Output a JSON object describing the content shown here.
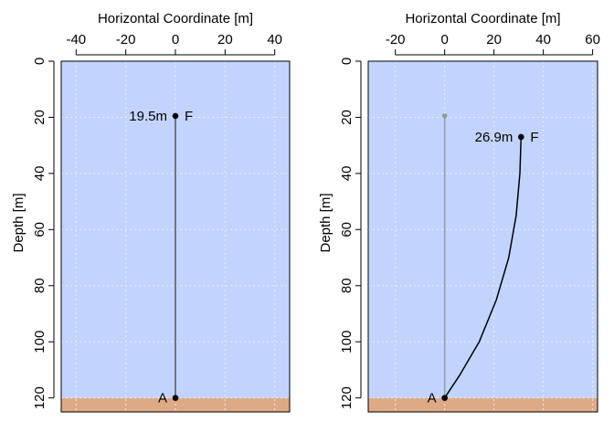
{
  "colors": {
    "water": "#c2d4fd",
    "seabed": "#deaa86",
    "grid": "#e8eeff",
    "frame": "#000000",
    "line_current": "#000000",
    "line_previous": "#999999",
    "line_vertical": "#555555"
  },
  "chart_data": [
    {
      "type": "line",
      "title": "",
      "xlabel": "Horizontal Coordinate [m]",
      "ylabel": "Depth [m]",
      "x_axis_position": "top",
      "y_inverted": true,
      "xlim": [
        -46,
        46
      ],
      "ylim": [
        0,
        125
      ],
      "xticks": [
        -40,
        -20,
        0,
        20,
        40
      ],
      "xtick_labels": [
        "-40",
        "-20",
        "0",
        "20",
        "40"
      ],
      "yticks": [
        0,
        20,
        40,
        60,
        80,
        100,
        120
      ],
      "ytick_labels": [
        "0",
        "20",
        "40",
        "60",
        "80",
        "100",
        "120"
      ],
      "grid": true,
      "water_top": 0,
      "seabed_depth": 120,
      "series": [
        {
          "role": "line",
          "points": [
            [
              0,
              19.5
            ],
            [
              0,
              120
            ]
          ]
        }
      ],
      "points": [
        {
          "x": 0,
          "y": 19.5,
          "label": "F",
          "annotation": "19.5m"
        },
        {
          "x": 0,
          "y": 120,
          "label": "A"
        }
      ]
    },
    {
      "type": "line",
      "title": "",
      "xlabel": "Horizontal Coordinate [m]",
      "ylabel": "Depth [m]",
      "x_axis_position": "top",
      "y_inverted": true,
      "xlim": [
        -31,
        62
      ],
      "ylim": [
        0,
        125
      ],
      "xticks": [
        -20,
        0,
        20,
        40,
        60
      ],
      "xtick_labels": [
        "-20",
        "0",
        "20",
        "40",
        "60"
      ],
      "yticks": [
        0,
        20,
        40,
        60,
        80,
        100,
        120
      ],
      "ytick_labels": [
        "0",
        "20",
        "40",
        "60",
        "80",
        "100",
        "120"
      ],
      "grid": true,
      "water_top": 0,
      "seabed_depth": 120,
      "series": [
        {
          "role": "previous",
          "points": [
            [
              0,
              19.5
            ],
            [
              0,
              120
            ]
          ]
        },
        {
          "role": "current",
          "points": [
            [
              31,
              27
            ],
            [
              30.5,
              40
            ],
            [
              29,
              55
            ],
            [
              26,
              70
            ],
            [
              21,
              85
            ],
            [
              14,
              100
            ],
            [
              6,
              112
            ],
            [
              0,
              120
            ]
          ]
        }
      ],
      "points": [
        {
          "x": 0,
          "y": 19.5,
          "label": "",
          "role": "previous"
        },
        {
          "x": 31,
          "y": 27,
          "label": "F",
          "annotation": "26.9m"
        },
        {
          "x": 0,
          "y": 120,
          "label": "A"
        }
      ]
    }
  ]
}
